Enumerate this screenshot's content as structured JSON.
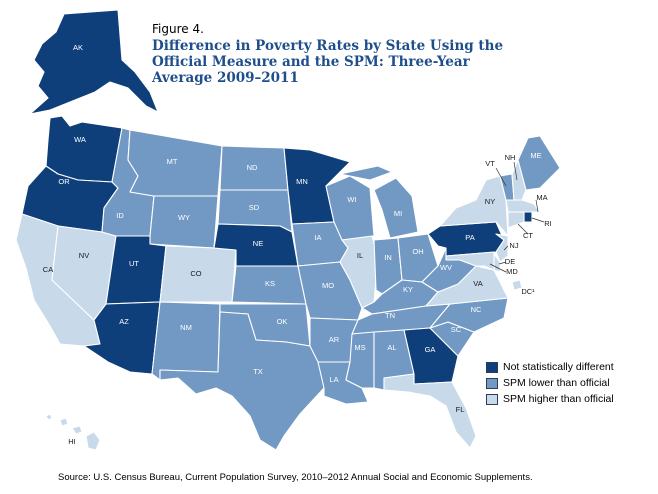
{
  "figure_label": "Figure 4.",
  "title": "Difference in Poverty Rates by State Using the Official Measure and the SPM: Three-Year Average 2009–2011",
  "source": "Source: U.S. Census Bureau, Current Population Survey,  2010–2012 Annual Social and Economic Supplements.",
  "colors": {
    "not_different": "#0f3f7a",
    "spm_lower": "#7199c4",
    "spm_higher": "#c8d9ea"
  },
  "legend": [
    {
      "key": "not_different",
      "label": "Not statistically different"
    },
    {
      "key": "spm_lower",
      "label": "SPM lower than official"
    },
    {
      "key": "spm_higher",
      "label": "SPM higher than official"
    }
  ],
  "states": {
    "AK": "not_different",
    "HI": "spm_higher",
    "WA": "not_different",
    "OR": "not_different",
    "CA": "spm_higher",
    "NV": "spm_higher",
    "ID": "spm_lower",
    "MT": "spm_lower",
    "WY": "spm_lower",
    "UT": "not_different",
    "AZ": "not_different",
    "CO": "spm_higher",
    "NM": "spm_lower",
    "ND": "spm_lower",
    "SD": "spm_lower",
    "NE": "not_different",
    "KS": "spm_lower",
    "OK": "spm_lower",
    "TX": "spm_lower",
    "MN": "not_different",
    "IA": "spm_lower",
    "MO": "spm_lower",
    "AR": "spm_lower",
    "LA": "spm_lower",
    "WI": "spm_lower",
    "IL": "spm_higher",
    "MI": "spm_lower",
    "IN": "spm_lower",
    "OH": "spm_lower",
    "KY": "spm_lower",
    "TN": "spm_lower",
    "MS": "spm_lower",
    "AL": "spm_lower",
    "GA": "not_different",
    "FL": "spm_higher",
    "SC": "spm_lower",
    "NC": "spm_lower",
    "VA": "spm_higher",
    "WV": "spm_lower",
    "PA": "not_different",
    "NY": "spm_higher",
    "VT": "spm_lower",
    "NH": "spm_higher",
    "ME": "spm_lower",
    "MA": "spm_higher",
    "RI": "not_different",
    "CT": "spm_higher",
    "NJ": "spm_higher",
    "DE": "spm_higher",
    "MD": "spm_higher",
    "DC": "spm_higher"
  },
  "state_labels": {
    "AK": "AK",
    "HI": "HI",
    "WA": "WA",
    "OR": "OR",
    "CA": "CA",
    "NV": "NV",
    "ID": "ID",
    "MT": "MT",
    "WY": "WY",
    "UT": "UT",
    "AZ": "AZ",
    "CO": "CO",
    "NM": "NM",
    "ND": "ND",
    "SD": "SD",
    "NE": "NE",
    "KS": "KS",
    "OK": "OK",
    "TX": "TX",
    "MN": "MN",
    "IA": "IA",
    "MO": "MO",
    "AR": "AR",
    "LA": "LA",
    "WI": "WI",
    "IL": "IL",
    "MI": "MI",
    "IN": "IN",
    "OH": "OH",
    "KY": "KY",
    "TN": "TN",
    "MS": "MS",
    "AL": "AL",
    "GA": "GA",
    "FL": "FL",
    "SC": "SC",
    "NC": "NC",
    "VA": "VA",
    "WV": "WV",
    "PA": "PA",
    "NY": "NY",
    "VT": "VT",
    "NH": "NH",
    "ME": "ME",
    "MA": "MA",
    "RI": "RI",
    "CT": "CT",
    "NJ": "NJ",
    "DE": "DE",
    "MD": "MD",
    "DC": "DC¹"
  }
}
